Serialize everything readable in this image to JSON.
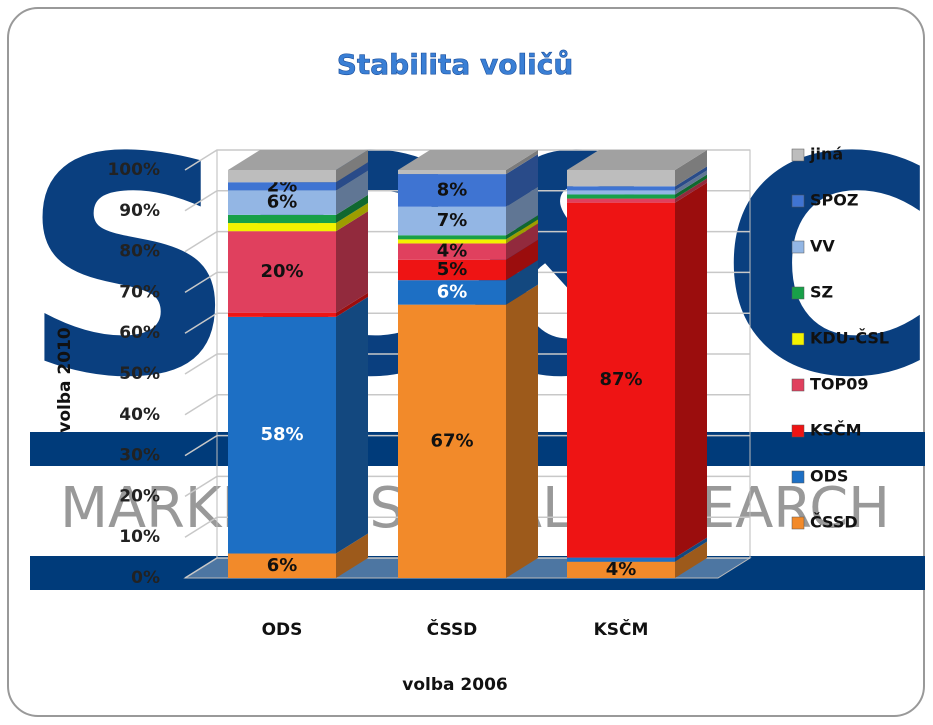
{
  "chart_data": {
    "type": "bar",
    "stacked": true,
    "title": "Stabilita voličů",
    "watermark": [
      "SC&C",
      "MARKET & SOCIAL RESEARCH"
    ],
    "xlabel": "volba 2006",
    "ylabel": "volba 2010",
    "categories": [
      "ODS",
      "ČSSD",
      "KSČM"
    ],
    "ylim": [
      0,
      100
    ],
    "yticks": [
      {
        "value": 0,
        "label": "0%"
      },
      {
        "value": 10,
        "label": "10%"
      },
      {
        "value": 20,
        "label": "20%"
      },
      {
        "value": 30,
        "label": "30%"
      },
      {
        "value": 40,
        "label": "40%"
      },
      {
        "value": 50,
        "label": "50%"
      },
      {
        "value": 60,
        "label": "60%"
      },
      {
        "value": 70,
        "label": "70%"
      },
      {
        "value": 80,
        "label": "80%"
      },
      {
        "value": 90,
        "label": "90%"
      },
      {
        "value": 100,
        "label": "100%"
      }
    ],
    "grid": true,
    "legend": "right",
    "series": [
      {
        "name": "ČSSD",
        "color": "#f28a2a",
        "values": [
          6,
          67,
          4
        ],
        "value_labels": [
          "6%",
          "67%",
          "4%"
        ]
      },
      {
        "name": "ODS",
        "color": "#1d6fc4",
        "values": [
          58,
          6,
          1
        ],
        "value_labels": [
          "58%",
          "6%",
          null
        ]
      },
      {
        "name": "KSČM",
        "color": "#ee1414",
        "values": [
          1,
          5,
          87
        ],
        "value_labels": [
          null,
          "5%",
          "87%"
        ]
      },
      {
        "name": "TOP09",
        "color": "#e0405e",
        "values": [
          20,
          4,
          1
        ],
        "value_labels": [
          "20%",
          "4%",
          null
        ]
      },
      {
        "name": "KDU-ČSL",
        "color": "#f2f200",
        "values": [
          2,
          1,
          0
        ],
        "value_labels": [
          null,
          null,
          null
        ]
      },
      {
        "name": "SZ",
        "color": "#18a048",
        "values": [
          2,
          1,
          1
        ],
        "value_labels": [
          null,
          null,
          null
        ]
      },
      {
        "name": "VV",
        "color": "#93b6e4",
        "values": [
          6,
          7,
          1
        ],
        "value_labels": [
          "6%",
          "7%",
          null
        ]
      },
      {
        "name": "SPOZ",
        "color": "#3f74d2",
        "values": [
          2,
          8,
          1
        ],
        "value_labels": [
          "2%",
          "8%",
          null
        ]
      },
      {
        "name": "jiná",
        "color": "#bdbdbd",
        "values": [
          3,
          1,
          4
        ],
        "value_labels": [
          null,
          null,
          null
        ]
      }
    ]
  }
}
